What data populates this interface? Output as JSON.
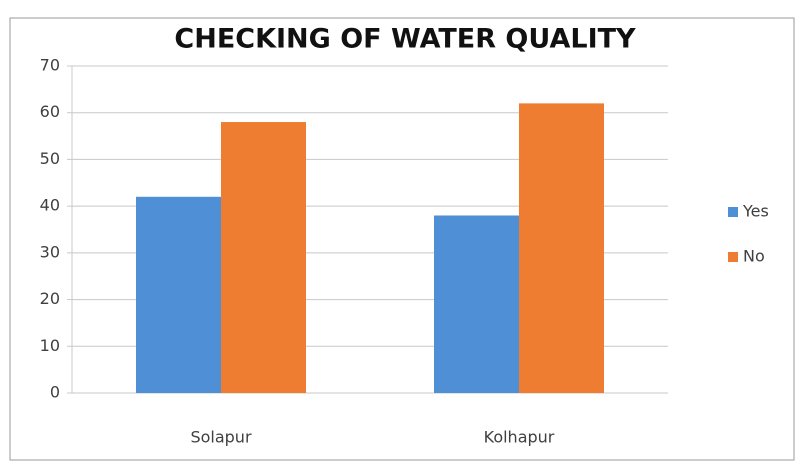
{
  "chart_data": {
    "type": "bar",
    "title": "CHECKING OF WATER QUALITY",
    "categories": [
      "Solapur",
      "Kolhapur"
    ],
    "series": [
      {
        "name": "Yes",
        "color": "#4f8fd6",
        "values": [
          42,
          38
        ]
      },
      {
        "name": "No",
        "color": "#ee7d31",
        "values": [
          58,
          62
        ]
      }
    ],
    "ylim": [
      0,
      70
    ],
    "yticks": [
      0,
      10,
      20,
      30,
      40,
      50,
      60,
      70
    ],
    "grid": true,
    "legend": "right"
  }
}
